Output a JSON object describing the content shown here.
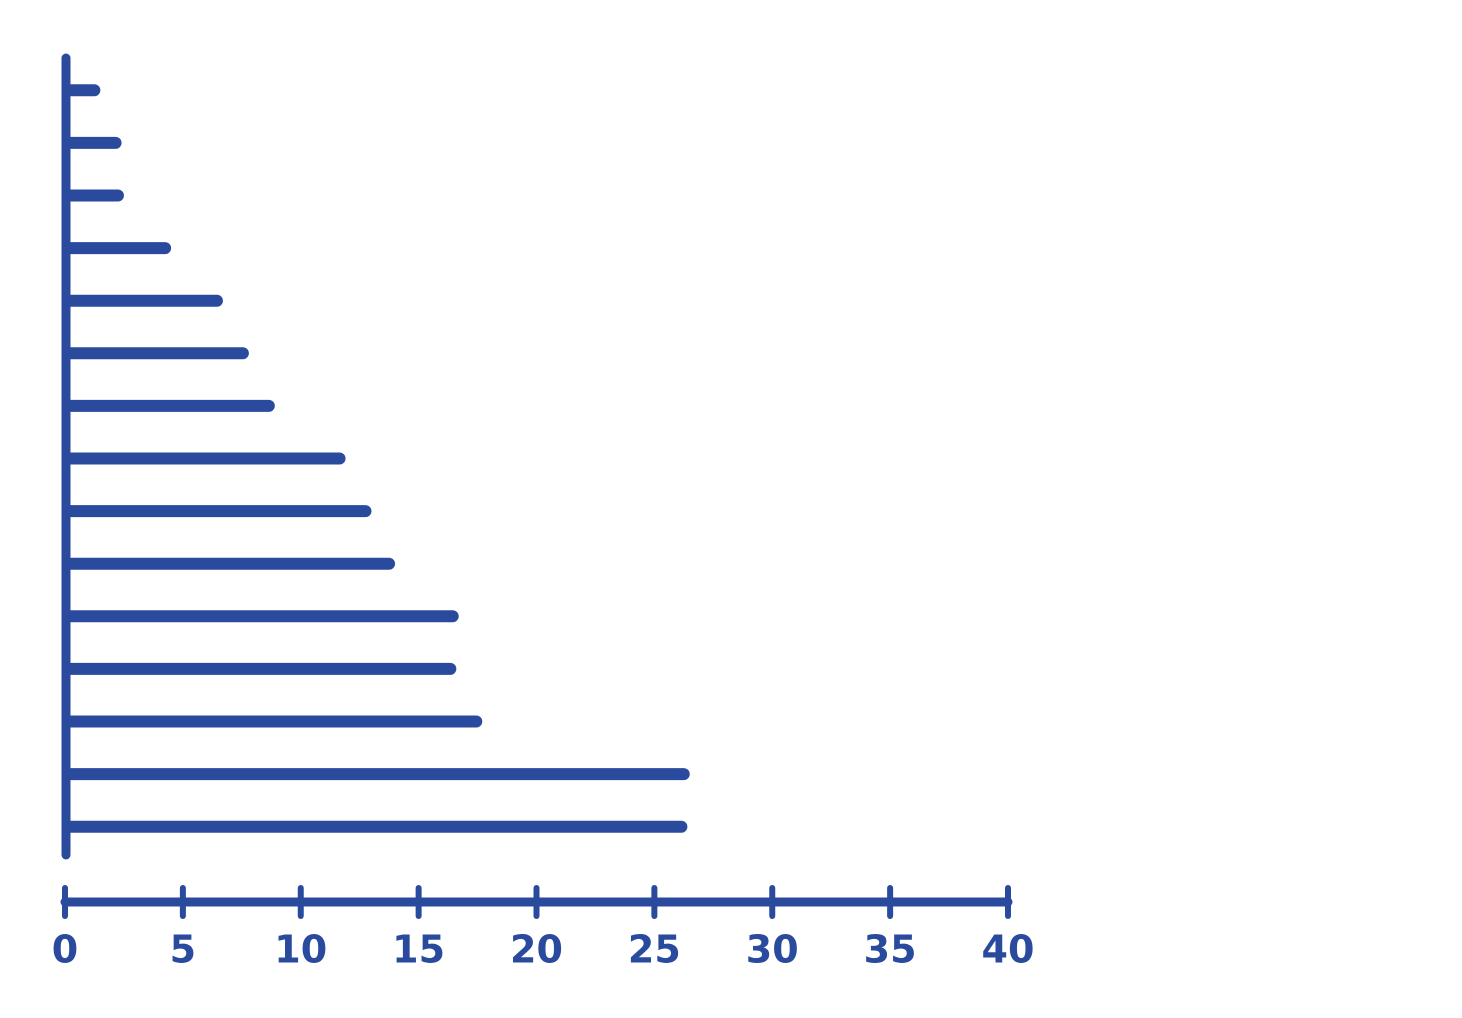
{
  "chart_data": {
    "type": "hbar",
    "categories": [
      null,
      null,
      null,
      null,
      null,
      null,
      null,
      null,
      null,
      null,
      null,
      null,
      null,
      null,
      null
    ],
    "values": [
      1.5,
      2.4,
      2.5,
      4.5,
      6.7,
      7.8,
      8.9,
      11.9,
      13.0,
      14.0,
      16.7,
      16.6,
      17.7,
      26.5,
      26.4
    ],
    "color": "#2a4a9e",
    "xlim": [
      0,
      40
    ],
    "xticks": [
      0,
      5,
      10,
      15,
      20,
      25,
      30,
      35,
      40
    ]
  }
}
